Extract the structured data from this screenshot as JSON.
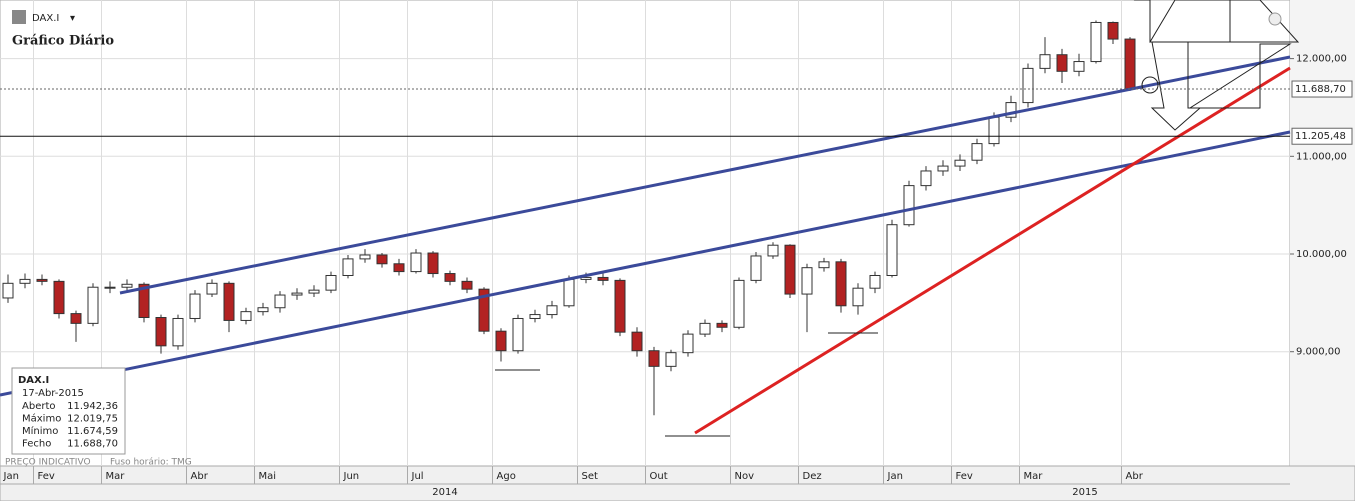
{
  "header": {
    "symbol": "DAX.I",
    "subtitle": "Gráfico Diário"
  },
  "info_box": {
    "symbol": "DAX.I",
    "date": "17-Abr-2015",
    "rows": [
      [
        "Aberto",
        "11.942,36"
      ],
      [
        "Máximo",
        "12.019,75"
      ],
      [
        "Mínimo",
        "11.674,59"
      ],
      [
        "Fecho",
        "11.688,70"
      ]
    ]
  },
  "footer": {
    "price_note": "PREÇO INDICATIVO",
    "timezone": "Fuso horário: TMG"
  },
  "years": [
    "2014",
    "2015"
  ],
  "chart_data": {
    "type": "candlestick",
    "categories": [
      "Jan",
      null,
      "Fev",
      null,
      null,
      null,
      "Mar",
      null,
      null,
      null,
      null,
      "Abr",
      null,
      null,
      null,
      "Mai",
      null,
      null,
      null,
      null,
      "Jun",
      null,
      null,
      null,
      "Jul",
      null,
      null,
      null,
      null,
      "Ago",
      null,
      null,
      null,
      null,
      "Set",
      null,
      null,
      null,
      "Out",
      null,
      null,
      null,
      null,
      "Nov",
      null,
      null,
      null,
      "Dez",
      null,
      null,
      null,
      null,
      "Jan",
      null,
      null,
      null,
      "Fev",
      null,
      null,
      null,
      "Mar",
      null,
      null,
      null,
      null,
      null,
      "Abr"
    ],
    "open": [
      9550,
      9700,
      9740,
      9720,
      9390,
      9290,
      9660,
      9660,
      9690,
      9350,
      9060,
      9340,
      9590,
      9700,
      9320,
      9410,
      9450,
      9580,
      9600,
      9630,
      9780,
      9950,
      9990,
      9900,
      9820,
      10010,
      9800,
      9720,
      9640,
      9210,
      9010,
      9340,
      9380,
      9470,
      9740,
      9760,
      9730,
      9200,
      9010,
      8850,
      8990,
      9180,
      9290,
      9250,
      9730,
      9980,
      10090,
      9590,
      9860,
      9920,
      9470,
      9650,
      9780,
      10300,
      10700,
      10850,
      10900,
      10960,
      11130,
      11400,
      11550,
      11900,
      12040,
      11870,
      11970,
      12370,
      12200
    ],
    "high": [
      9790,
      9800,
      9790,
      9740,
      9420,
      9700,
      9720,
      9740,
      9710,
      9380,
      9380,
      9630,
      9740,
      9720,
      9450,
      9500,
      9620,
      9650,
      9680,
      9820,
      9990,
      10050,
      10010,
      9950,
      10050,
      10030,
      9830,
      9760,
      9660,
      9240,
      9380,
      9430,
      9520,
      9780,
      9810,
      9800,
      9750,
      9250,
      9050,
      9020,
      9220,
      9330,
      9320,
      9760,
      10020,
      10120,
      10100,
      9900,
      9960,
      9950,
      9700,
      9820,
      10350,
      10750,
      10900,
      10960,
      11020,
      11180,
      11450,
      11620,
      11950,
      12220,
      12100,
      12050,
      12390,
      12380,
      12220
    ],
    "low": [
      9500,
      9650,
      9680,
      9340,
      9100,
      9260,
      9600,
      9620,
      9300,
      8980,
      9020,
      9300,
      9560,
      9200,
      9280,
      9370,
      9400,
      9530,
      9560,
      9600,
      9750,
      9910,
      9860,
      9780,
      9800,
      9760,
      9680,
      9600,
      9180,
      8900,
      8980,
      9300,
      9340,
      9450,
      9700,
      9680,
      9160,
      8950,
      8350,
      8800,
      8950,
      9150,
      9200,
      9230,
      9700,
      9950,
      9550,
      9200,
      9820,
      9400,
      9380,
      9600,
      9760,
      10280,
      10650,
      10800,
      10850,
      10920,
      11100,
      11350,
      11500,
      11850,
      11750,
      11820,
      11950,
      12150,
      11670
    ],
    "close": [
      9700,
      9740,
      9720,
      9390,
      9290,
      9660,
      9660,
      9690,
      9350,
      9060,
      9340,
      9590,
      9700,
      9320,
      9410,
      9450,
      9580,
      9600,
      9630,
      9780,
      9950,
      9990,
      9900,
      9820,
      10010,
      9800,
      9720,
      9640,
      9210,
      9010,
      9340,
      9380,
      9470,
      9740,
      9760,
      9730,
      9200,
      9010,
      8850,
      8990,
      9180,
      9290,
      9250,
      9730,
      9980,
      10090,
      9590,
      9860,
      9920,
      9470,
      9650,
      9780,
      10300,
      10700,
      10850,
      10900,
      10960,
      11130,
      11400,
      11550,
      11900,
      12040,
      11870,
      11970,
      12370,
      12200,
      11690
    ],
    "up_color": "#ffffff",
    "down_color": "#b22222",
    "ylim": [
      7830,
      12600
    ],
    "yticks": [
      {
        "value": 9000,
        "label": "9.000,00"
      },
      {
        "value": 10000,
        "label": "10.000,00"
      },
      {
        "value": 11000,
        "label": "11.000,00"
      },
      {
        "value": 12000,
        "label": "12.000,00"
      }
    ],
    "levels": [
      {
        "value": 11688.7,
        "label": "11.688,70"
      },
      {
        "value": 11205.48,
        "label": "11.205,48"
      }
    ],
    "grid": true
  }
}
